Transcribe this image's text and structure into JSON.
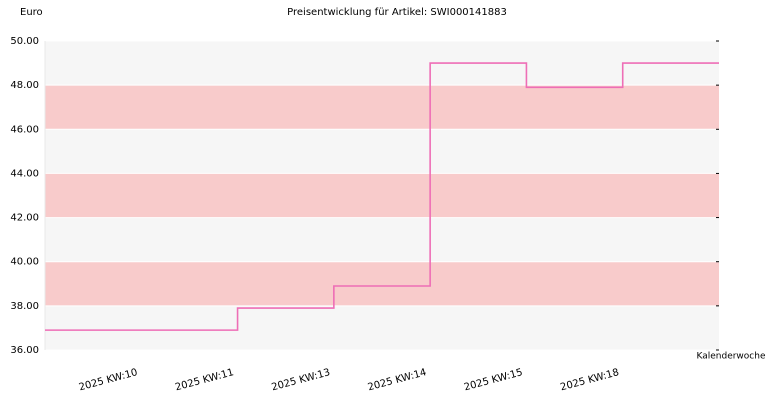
{
  "chart_data": {
    "type": "step",
    "title": "Preisentwicklung für Artikel: SWI000141883",
    "y_label": "Euro",
    "x_label": "Kalenderwoche",
    "categories": [
      "2025 KW:10",
      "2025 KW:11",
      "2025 KW:13",
      "2025 KW:14",
      "2025 KW:15",
      "2025 KW:18"
    ],
    "values": [
      36.9,
      37.9,
      38.9,
      49.0,
      47.9,
      49.0
    ],
    "color": "#ee6eb6",
    "ylim": [
      36,
      50
    ],
    "yticks": [
      {
        "value": 36,
        "label": "36.00"
      },
      {
        "value": 38,
        "label": "38.00"
      },
      {
        "value": 40,
        "label": "40.00"
      },
      {
        "value": 42,
        "label": "42.00"
      },
      {
        "value": 44,
        "label": "44.00"
      },
      {
        "value": 46,
        "label": "46.00"
      },
      {
        "value": 48,
        "label": "48.00"
      },
      {
        "value": 50,
        "label": "50.00"
      }
    ],
    "band_colors": [
      "#f8cbcb",
      "#f6f6f6"
    ]
  }
}
